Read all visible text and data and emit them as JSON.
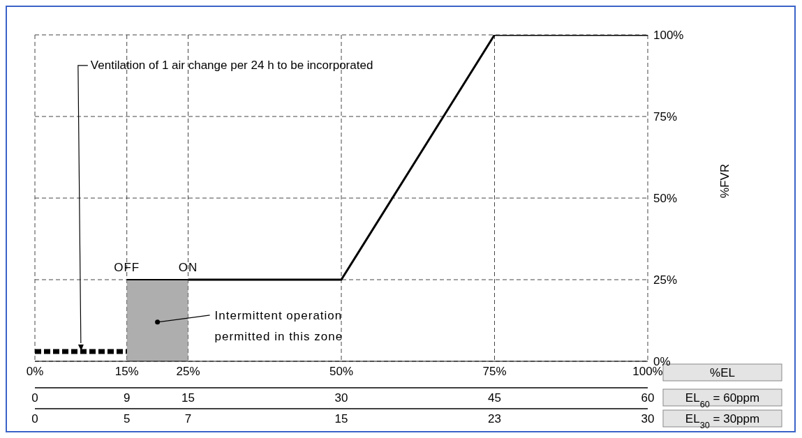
{
  "chart_data": {
    "type": "line",
    "xlabel": "%EL",
    "ylabel": "%FVR",
    "x2label": "EL$_{60}$ = 60ppm",
    "xlim": [
      0,
      100
    ],
    "xticks": [
      {
        "value": 0,
        "label": "0%"
      },
      {
        "value": 15,
        "label": "15%"
      },
      {
        "value": 25,
        "label": "25%"
      },
      {
        "value": 50,
        "label": "50%"
      },
      {
        "value": 75,
        "label": "75%"
      },
      {
        "value": 100,
        "label": "100%"
      }
    ],
    "x2lim": [
      0,
      60
    ],
    "x2ticks": [
      0,
      9,
      15,
      30,
      45,
      60
    ],
    "ylim": [
      0,
      100
    ],
    "yticks": [
      {
        "value": 0,
        "label": "0%"
      },
      {
        "value": 25,
        "label": "25%"
      },
      {
        "value": 50,
        "label": "50%"
      },
      {
        "value": 75,
        "label": "75%"
      },
      {
        "value": 100,
        "label": "100%"
      }
    ],
    "grid": true,
    "marker": "none",
    "series": [
      {
        "x": [
          0,
          15
        ],
        "values": [
          3,
          3
        ],
        "color": "#000000",
        "line_style": "dashed"
      },
      {
        "type": "area",
        "x": [
          15,
          25
        ],
        "values": [
          25,
          25
        ],
        "color": "#9a9a9a"
      },
      {
        "x": [
          25,
          50,
          75,
          100
        ],
        "values": [
          25,
          25,
          100,
          100
        ],
        "color": "#000000",
        "line_style": "solid"
      }
    ],
    "annotations": [
      "Ventilation of 1 air change per 24 h to be incorporated",
      {
        "text": "OFF",
        "x": 15,
        "y": 25
      },
      {
        "text": "ON",
        "x": 25,
        "y": 25
      },
      {
        "text": "Intermittent operation permitted in this zone",
        "x": 20,
        "y": 12
      },
      "EL$_{30}$ = 30ppm",
      "0",
      "5",
      "7",
      "15",
      "23",
      "30"
    ]
  }
}
